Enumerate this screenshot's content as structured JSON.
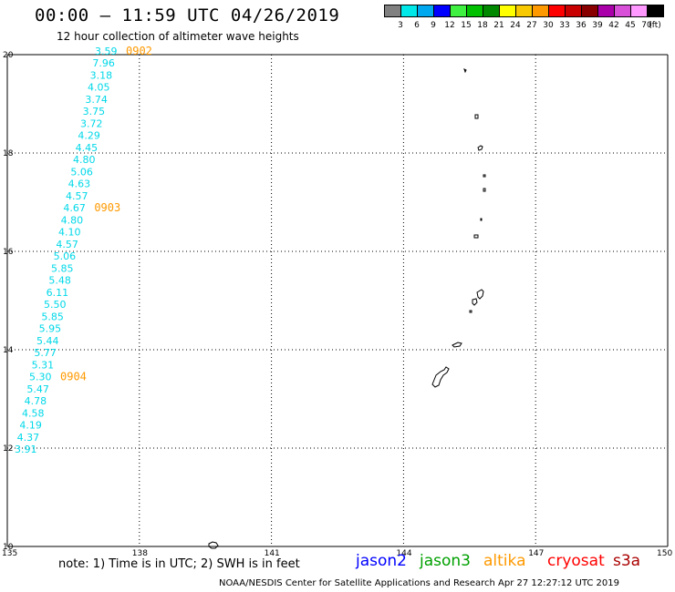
{
  "header": {
    "title": "00:00 — 11:59 UTC 04/26/2019",
    "subtitle": "12 hour collection of altimeter wave heights"
  },
  "color_scale": {
    "unit_label": "(ft)",
    "bins": [
      {
        "color": "#808080",
        "label": "3"
      },
      {
        "color": "#00e8e8",
        "label": "6"
      },
      {
        "color": "#00a8f0",
        "label": "9"
      },
      {
        "color": "#0000ff",
        "label": "12"
      },
      {
        "color": "#40f040",
        "label": "15"
      },
      {
        "color": "#00c000",
        "label": "18"
      },
      {
        "color": "#008800",
        "label": "21"
      },
      {
        "color": "#ffff00",
        "label": "24"
      },
      {
        "color": "#f8c800",
        "label": "27"
      },
      {
        "color": "#ff9900",
        "label": "30"
      },
      {
        "color": "#ff0000",
        "label": "33"
      },
      {
        "color": "#c80000",
        "label": "36"
      },
      {
        "color": "#880000",
        "label": "39"
      },
      {
        "color": "#aa00aa",
        "label": "42"
      },
      {
        "color": "#d850d8",
        "label": "45"
      },
      {
        "color": "#ff99ff",
        "label": "70"
      },
      {
        "color": "#000000",
        "label": ""
      }
    ]
  },
  "map": {
    "lon_ticks": [
      "135",
      "138",
      "141",
      "144",
      "147",
      "150"
    ],
    "lat_ticks": [
      "20",
      "18",
      "16",
      "14",
      "12",
      "10"
    ],
    "track_color": "#00d8e8",
    "time_label_color": "#ff9900",
    "wave_heights": [
      "3.59",
      "7.96",
      "3.18",
      "4.05",
      "3.74",
      "3.75",
      "3.72",
      "4.29",
      "4.45",
      "4.80",
      "5.06",
      "4.63",
      "4.57",
      "4.67",
      "4.80",
      "4.10",
      "4.57",
      "5.06",
      "5.85",
      "5.48",
      "6.11",
      "5.50",
      "5.85",
      "5.95",
      "5.44",
      "5.77",
      "5.31",
      "5.30",
      "5.47",
      "4.78",
      "4.58",
      "4.19",
      "4.37",
      "3.91"
    ],
    "time_labels": [
      {
        "text": "0902",
        "index": 0
      },
      {
        "text": "0903",
        "index": 13
      },
      {
        "text": "0904",
        "index": 27
      }
    ]
  },
  "footer": {
    "note": "note: 1) Time is in UTC; 2) SWH is in feet",
    "credit": "NOAA/NESDIS Center for Satellite Applications and Research   Apr 27 12:27:12 UTC 2019",
    "satellites": [
      {
        "name": "jason2",
        "color": "#0000ff"
      },
      {
        "name": "jason3",
        "color": "#00a000"
      },
      {
        "name": "altika",
        "color": "#ff9900"
      },
      {
        "name": "cryosat",
        "color": "#ff0000"
      },
      {
        "name": "s3a",
        "color": "#aa0000"
      }
    ]
  }
}
